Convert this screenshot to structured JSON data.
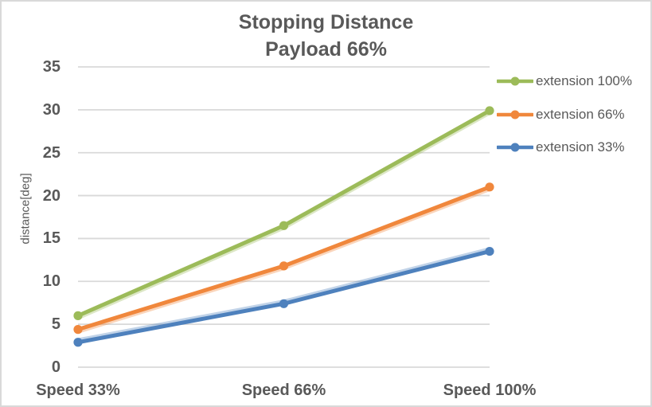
{
  "window": {
    "background": "#FFFFFF",
    "border_color": "#D9D9D9"
  },
  "chart_data": {
    "type": "line",
    "title": "Stopping Distance",
    "subtitle": "Payload 66%",
    "categories": [
      "Speed 33%",
      "Speed 66%",
      "Speed 100%"
    ],
    "series": [
      {
        "name": "extension 100%",
        "values": [
          6.0,
          16.5,
          29.9
        ],
        "color": "#9CBB59"
      },
      {
        "name": "extension 66%",
        "values": [
          4.4,
          11.8,
          21.0
        ],
        "color": "#F0873C"
      },
      {
        "name": "extension 33%",
        "values": [
          2.9,
          7.4,
          13.5
        ],
        "color": "#4E81BD"
      }
    ],
    "xlabel": "",
    "ylabel": "distance[deg]",
    "ylim": [
      0,
      35
    ],
    "ytick_step": 5,
    "yticks": [
      0,
      5,
      10,
      15,
      20,
      25,
      30,
      35
    ],
    "grid": "horizontal",
    "gridline_color": "#D9D9D9",
    "text_color": "#595959",
    "legend_position": "right",
    "marker": "circle"
  }
}
